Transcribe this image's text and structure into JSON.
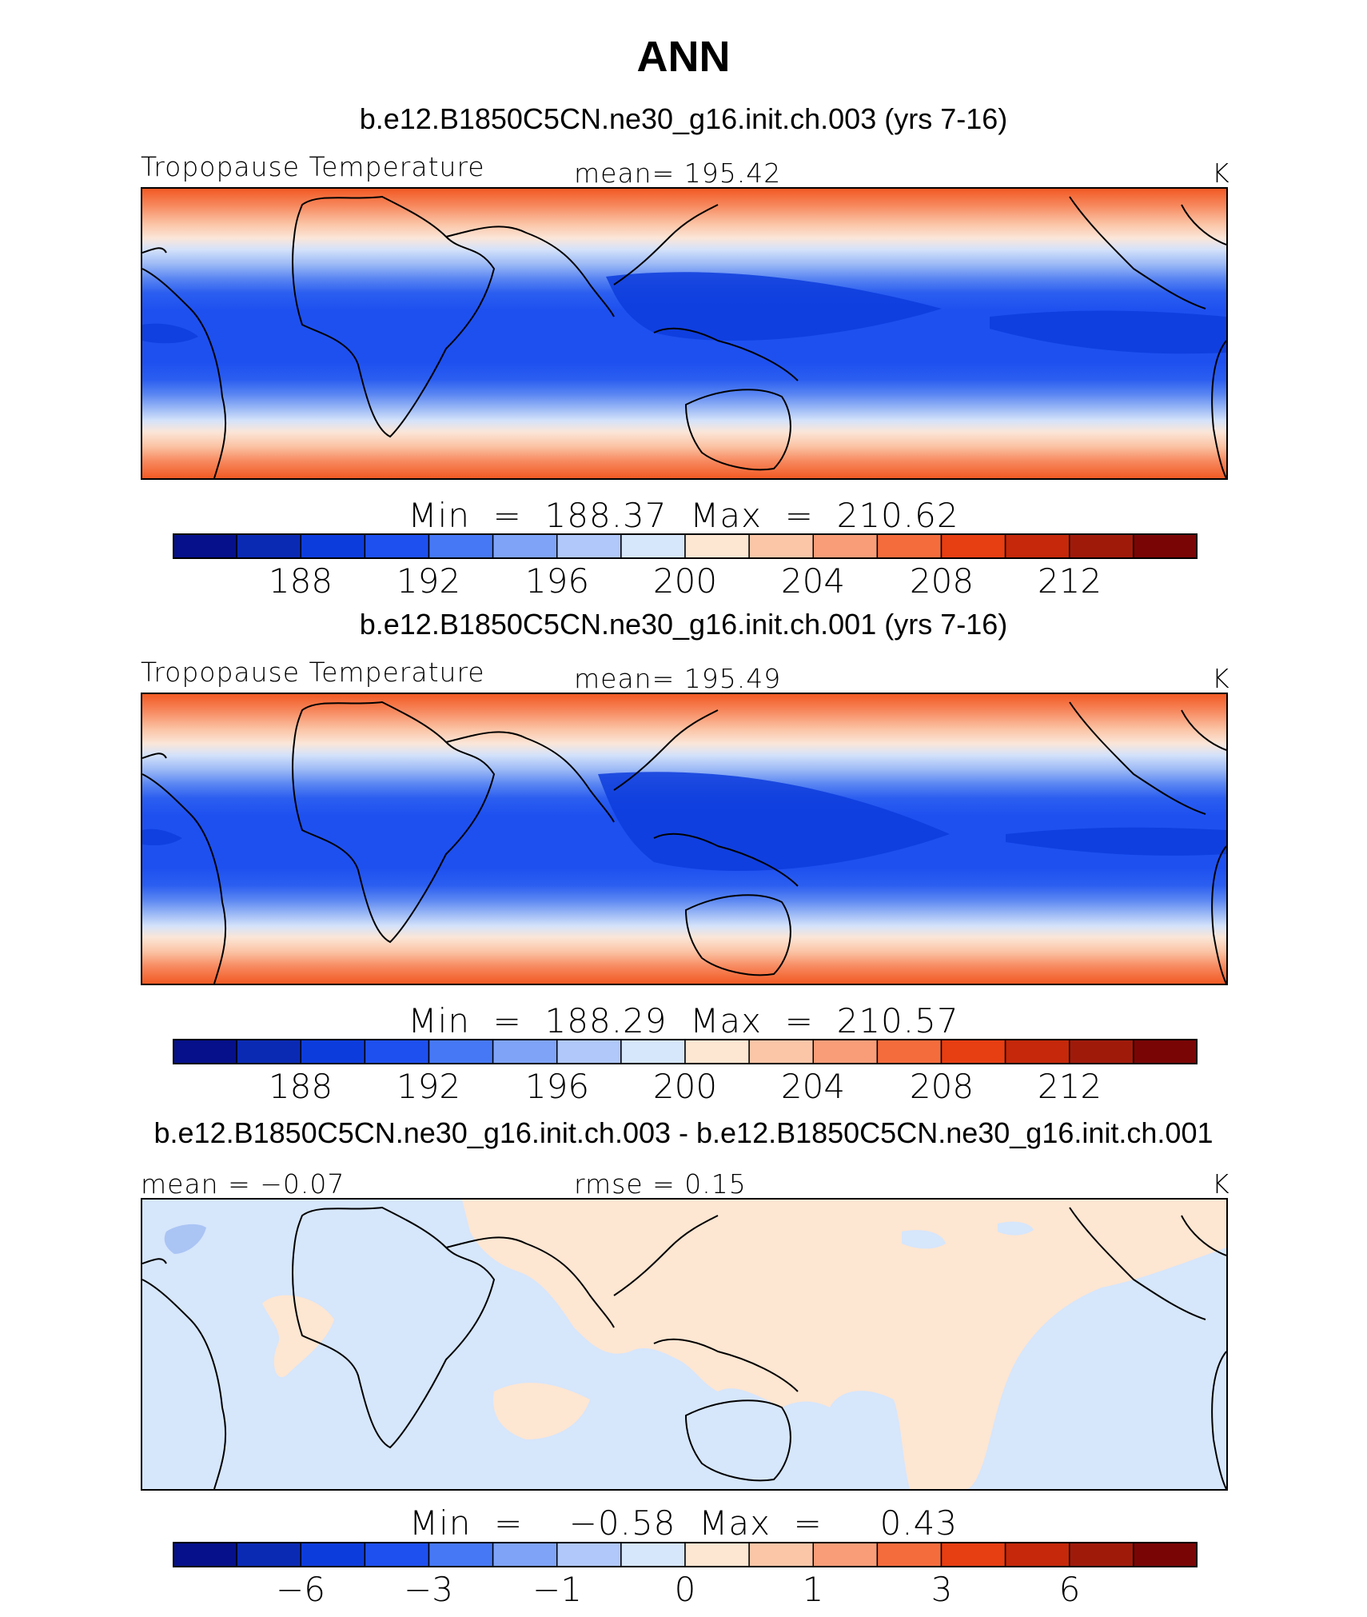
{
  "figure": {
    "title": "ANN"
  },
  "panels": [
    {
      "case_title": "b.e12.B1850C5CN.ne30_g16.init.ch.003 (yrs 7-16)",
      "left_label": "Tropopause Temperature",
      "center_label": "mean=  195.42",
      "units": "K",
      "min_max": "Min  =  188.37  Max  =  210.62",
      "colorbar_ticks": [
        "188",
        "192",
        "196",
        "200",
        "204",
        "208",
        "212"
      ]
    },
    {
      "case_title": "b.e12.B1850C5CN.ne30_g16.init.ch.001 (yrs 7-16)",
      "left_label": "Tropopause Temperature",
      "center_label": "mean=  195.49",
      "units": "K",
      "min_max": "Min  =  188.29  Max  =  210.57",
      "colorbar_ticks": [
        "188",
        "192",
        "196",
        "200",
        "204",
        "208",
        "212"
      ]
    },
    {
      "case_title": "b.e12.B1850C5CN.ne30_g16.init.ch.003 - b.e12.B1850C5CN.ne30_g16.init.ch.001",
      "left_label": "mean  =   −0.07",
      "center_label": "rmse  =     0.15",
      "units": "K",
      "min_max": "Min  =    −0.58  Max  =     0.43",
      "colorbar_ticks": [
        "−6",
        "−3",
        "−1",
        "0",
        "1",
        "3",
        "6"
      ]
    }
  ],
  "colorbar_colors": [
    "#05108a",
    "#0a2ab4",
    "#0d3cdc",
    "#1e50f0",
    "#4678f5",
    "#7ea3f7",
    "#b0c8fa",
    "#d6e6fb",
    "#fde6d2",
    "#fbc6a8",
    "#f89d78",
    "#f56c3c",
    "#e73e12",
    "#c5280a",
    "#a01a0a",
    "#7a0505"
  ],
  "colors": {
    "diff_positive": "#fde6d2",
    "diff_negative": "#d6e6fb",
    "diff_neg_blob": "#aac4f4",
    "coast": "#000000"
  }
}
